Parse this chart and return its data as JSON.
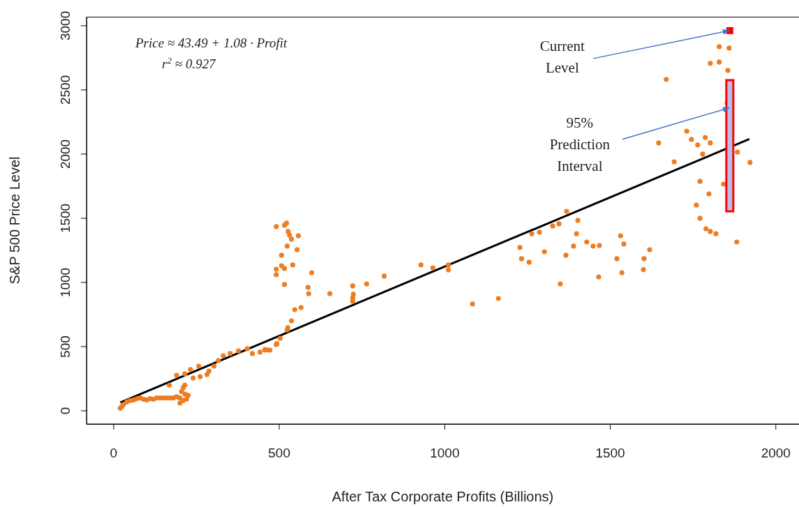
{
  "chart_data": {
    "type": "scatter",
    "xlabel": "After Tax Corporate Profits (Billions)",
    "ylabel": "S&P 500 Price Level",
    "xlim": [
      -82,
      2070
    ],
    "ylim": [
      -103,
      3070
    ],
    "xticks": [
      0,
      500,
      1000,
      1500,
      2000
    ],
    "yticks": [
      0,
      500,
      1000,
      1500,
      2000,
      2500,
      3000
    ],
    "annotations": [
      "Price ≈ 43.49 + 1.08 · Profit",
      "r$^{2}$ ≈ 0.927",
      {
        "text": "Current Level",
        "x": 1861,
        "y": 2962
      },
      {
        "text": "95% Prediction Interval",
        "x": 1861,
        "y": 2360
      }
    ],
    "series": [
      {
        "color": "#ee7d22",
        "marker": "circle",
        "x": [
          20,
          25,
          30,
          40,
          50,
          60,
          70,
          80,
          90,
          100,
          110,
          120,
          130,
          140,
          150,
          160,
          170,
          180,
          190,
          200,
          205,
          210,
          215,
          220,
          225,
          200,
          210,
          215,
          168,
          190,
          215,
          232,
          257,
          240,
          261,
          282,
          288,
          303,
          316,
          331,
          352,
          377,
          404,
          419,
          442,
          457,
          472,
          493,
          491,
          516,
          522,
          527,
          531,
          537,
          558,
          524,
          554,
          507,
          491,
          491,
          507,
          516,
          541,
          598,
          516,
          587,
          589,
          653,
          722,
          724,
          722,
          722,
          764,
          817,
          928,
          964,
          566,
          547,
          537,
          526,
          524,
          503,
          491,
          467,
          457,
          1011,
          1011,
          1084,
          1162,
          1227,
          1232,
          1255,
          1263,
          1286,
          1301,
          1326,
          1345,
          1368,
          1402,
          1398,
          1389,
          1366,
          1349,
          1429,
          1448,
          1467,
          1465,
          1531,
          1541,
          1520,
          1535,
          1802,
          1829,
          1855,
          1669,
          1731,
          1745,
          1764,
          1787,
          1802,
          1779,
          1646,
          1693,
          1853,
          1884,
          1922,
          1771,
          1842,
          1798,
          1760,
          1771,
          1789,
          1802,
          1819,
          1882,
          1619,
          1602,
          1600,
          1829,
          1859
        ],
        "values": [
          20,
          35,
          50,
          70,
          80,
          85,
          95,
          100,
          90,
          85,
          95,
          90,
          100,
          100,
          100,
          100,
          100,
          100,
          110,
          100,
          150,
          180,
          130,
          90,
          120,
          60,
          80,
          200,
          200,
          277,
          288,
          321,
          348,
          255,
          266,
          283,
          310,
          348,
          391,
          429,
          446,
          467,
          484,
          446,
          457,
          473,
          473,
          522,
          1435,
          1446,
          1462,
          1397,
          1370,
          1337,
          1364,
          1283,
          1255,
          1212,
          1103,
          1060,
          1130,
          1109,
          1136,
          1076,
          984,
          962,
          913,
          913,
          973,
          908,
          880,
          853,
          989,
          1049,
          1136,
          1114,
          804,
          788,
          701,
          647,
          630,
          565,
          516,
          473,
          478,
          1136,
          1098,
          832,
          875,
          1272,
          1185,
          1158,
          1380,
          1391,
          1239,
          1440,
          1457,
          1554,
          1484,
          1380,
          1283,
          1212,
          989,
          1315,
          1283,
          1288,
          1043,
          1364,
          1299,
          1185,
          1076,
          2707,
          2717,
          2652,
          2582,
          2179,
          2114,
          2071,
          2130,
          2087,
          2000,
          2087,
          1940,
          2397,
          2016,
          1935,
          1788,
          1766,
          1690,
          1603,
          1500,
          1418,
          1397,
          1380,
          1315,
          1255,
          1185,
          1100,
          2837,
          2826
        ]
      },
      {
        "type": "line",
        "color": "#000000",
        "marker": "none",
        "x": [
          20,
          1920
        ],
        "values": [
          65,
          2117
        ]
      },
      {
        "type": "scatter",
        "color": "#ff0000",
        "marker": "square",
        "x": [
          1861
        ],
        "values": [
          2962
        ]
      },
      {
        "type": "bar",
        "color": "#ff0000",
        "x": [
          1861
        ],
        "base": [
          1554
        ],
        "values": [
          1022
        ]
      }
    ]
  }
}
